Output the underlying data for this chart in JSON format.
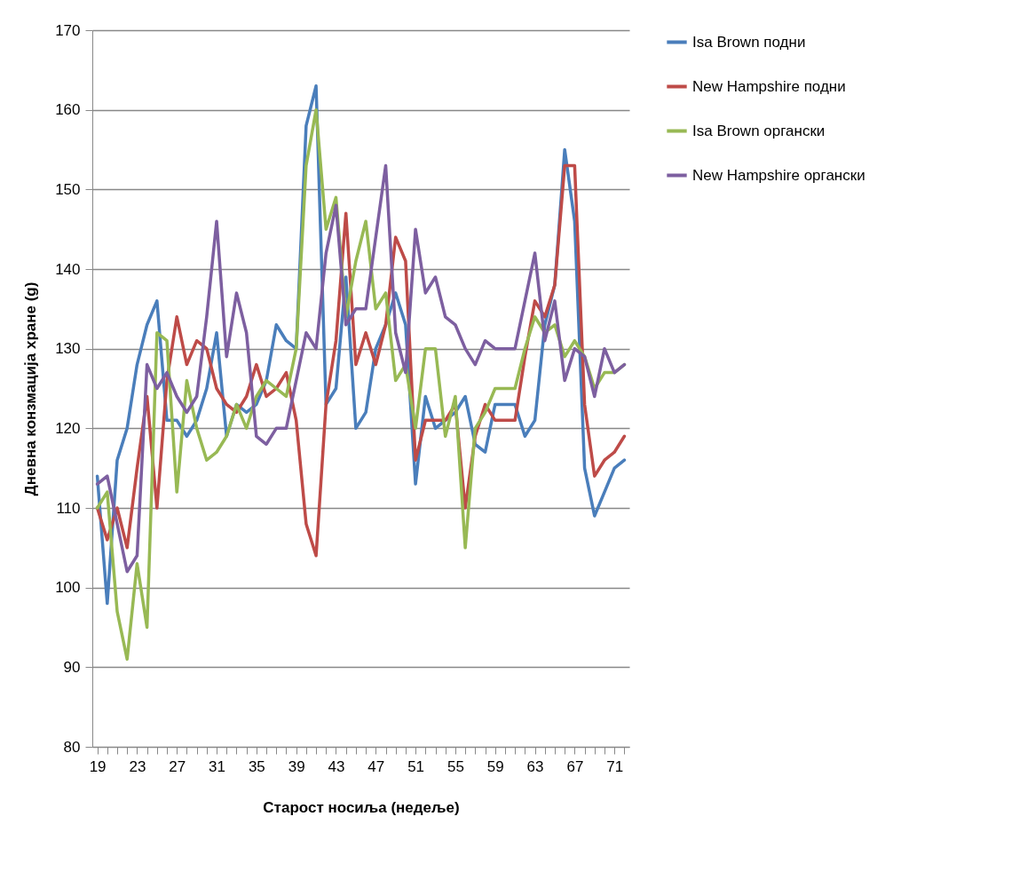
{
  "chart_data": {
    "type": "line",
    "xlabel": "Старост носиља (недеље)",
    "ylabel": "Дневна конзмација хране (g)",
    "categories": [
      "19",
      null,
      null,
      null,
      "23",
      null,
      null,
      null,
      "27",
      null,
      null,
      null,
      "31",
      null,
      null,
      null,
      "35",
      null,
      null,
      null,
      "39",
      null,
      null,
      null,
      "43",
      null,
      null,
      null,
      "47",
      null,
      null,
      null,
      "51",
      null,
      null,
      null,
      "55",
      null,
      null,
      null,
      "59",
      null,
      null,
      null,
      "63",
      null,
      null,
      null,
      "67",
      null,
      null,
      null,
      "71",
      null
    ],
    "series": [
      {
        "name": "Isa Brown подни",
        "color": "#4a7ebb",
        "values": [
          114,
          98,
          116,
          120,
          128,
          133,
          136,
          121,
          121,
          119,
          121,
          125,
          132,
          119,
          123,
          122,
          123,
          126,
          133,
          131,
          130,
          158,
          163,
          123,
          125,
          139,
          120,
          122,
          130,
          133,
          137,
          133,
          113,
          124,
          120,
          121,
          122,
          124,
          118,
          117,
          123,
          123,
          123,
          119,
          121,
          133,
          138,
          155,
          146,
          115,
          109,
          112,
          115,
          116
        ]
      },
      {
        "name": "New Hampshire подни",
        "color": "#be4b48",
        "values": [
          110,
          106,
          110,
          105,
          115,
          124,
          110,
          126,
          134,
          128,
          131,
          130,
          125,
          123,
          122,
          124,
          128,
          124,
          125,
          127,
          121,
          108,
          104,
          123,
          131,
          147,
          128,
          132,
          128,
          133,
          144,
          141,
          116,
          121,
          121,
          121,
          123,
          110,
          119,
          123,
          121,
          121,
          121,
          129,
          136,
          134,
          138,
          153,
          153,
          123,
          114,
          116,
          117,
          119
        ]
      },
      {
        "name": "Isa Brown органски",
        "color": "#98b954",
        "values": [
          110,
          112,
          97,
          91,
          103,
          95,
          132,
          131,
          112,
          126,
          120,
          116,
          117,
          119,
          123,
          120,
          124,
          126,
          125,
          124,
          130,
          153,
          160,
          145,
          149,
          134,
          141,
          146,
          135,
          137,
          126,
          128,
          120,
          130,
          130,
          119,
          124,
          105,
          120,
          122,
          125,
          125,
          125,
          130,
          134,
          132,
          133,
          129,
          131,
          129,
          125,
          127,
          127,
          128
        ]
      },
      {
        "name": "New Hampshire органски",
        "color": "#7d5fa0",
        "values": [
          113,
          114,
          108,
          102,
          104,
          128,
          125,
          127,
          124,
          122,
          124,
          134,
          146,
          129,
          137,
          132,
          119,
          118,
          120,
          120,
          126,
          132,
          130,
          142,
          148,
          133,
          135,
          135,
          144,
          153,
          132,
          127,
          145,
          137,
          139,
          134,
          133,
          130,
          128,
          131,
          130,
          130,
          130,
          136,
          142,
          131,
          136,
          126,
          130,
          129,
          124,
          130,
          127,
          128
        ]
      }
    ],
    "ylim": [
      80,
      170
    ],
    "yticks": [
      80,
      90,
      100,
      110,
      120,
      130,
      140,
      150,
      160,
      170
    ],
    "grid": "y",
    "legend": "right",
    "marker": "none",
    "line_style": "solid"
  }
}
